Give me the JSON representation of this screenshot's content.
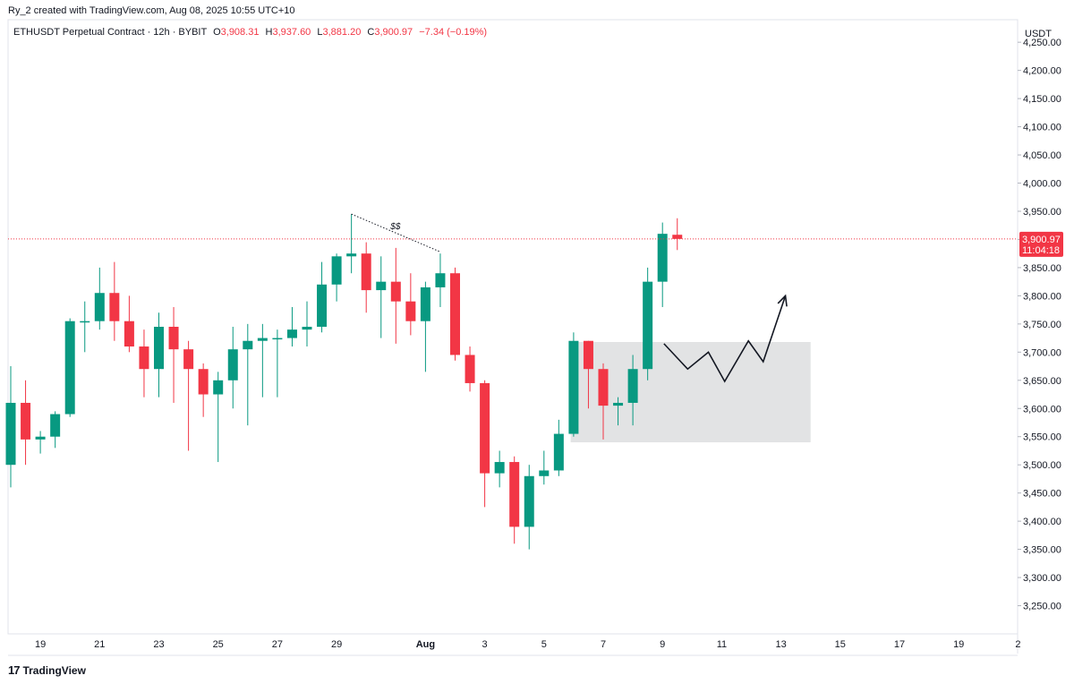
{
  "header": {
    "attribution": "Ry_2 created with TradingView.com, Aug 08, 2025 10:55 UTC+10"
  },
  "legend": {
    "symbol": "ETHUSDT Perpetual Contract · 12h · BYBIT",
    "open_label": "O",
    "open": "3,908.31",
    "high_label": "H",
    "high": "3,937.60",
    "low_label": "L",
    "low": "3,881.20",
    "close_label": "C",
    "close": "3,900.97",
    "change": "−7.34 (−0.19%)"
  },
  "footer": {
    "brand": "TradingView",
    "logo_text": "17"
  },
  "colors": {
    "up": "#089981",
    "down": "#f23645",
    "zone": "#e0e1e3",
    "text": "#131722"
  },
  "chart_data": {
    "type": "candlestick",
    "currency": "USDT",
    "ylim": [
      3200,
      4290
    ],
    "y_ticks": [
      3250,
      3300,
      3350,
      3400,
      3450,
      3500,
      3550,
      3600,
      3650,
      3700,
      3750,
      3800,
      3850,
      3900,
      3950,
      4000,
      4050,
      4100,
      4150,
      4200,
      4250
    ],
    "y_tick_labels": [
      "3,250.00",
      "3,300.00",
      "3,350.00",
      "3,400.00",
      "3,450.00",
      "3,500.00",
      "3,550.00",
      "3,600.00",
      "3,650.00",
      "3,700.00",
      "3,750.00",
      "3,800.00",
      "3,850.00",
      "3,900.00",
      "3,950.00",
      "4,000.00",
      "4,050.00",
      "4,100.00",
      "4,150.00",
      "4,200.00",
      "4,250.00"
    ],
    "x_tick_labels": [
      {
        "i": 2,
        "label": "19"
      },
      {
        "i": 6,
        "label": "21"
      },
      {
        "i": 10,
        "label": "23"
      },
      {
        "i": 14,
        "label": "25"
      },
      {
        "i": 18,
        "label": "27"
      },
      {
        "i": 22,
        "label": "29"
      },
      {
        "i": 28,
        "label": "Aug"
      },
      {
        "i": 32,
        "label": "3"
      },
      {
        "i": 36,
        "label": "5"
      },
      {
        "i": 40,
        "label": "7"
      },
      {
        "i": 44,
        "label": "9"
      },
      {
        "i": 48,
        "label": "11"
      },
      {
        "i": 52,
        "label": "13"
      },
      {
        "i": 56,
        "label": "15"
      },
      {
        "i": 60,
        "label": "17"
      },
      {
        "i": 64,
        "label": "19"
      },
      {
        "i": 68,
        "label": "2"
      }
    ],
    "candles": [
      [
        3500,
        3610,
        3460,
        3675
      ],
      [
        3610,
        3545,
        3500,
        3650
      ],
      [
        3545,
        3550,
        3520,
        3560
      ],
      [
        3550,
        3590,
        3530,
        3595
      ],
      [
        3590,
        3755,
        3585,
        3760
      ],
      [
        3755,
        3755,
        3700,
        3790
      ],
      [
        3755,
        3805,
        3740,
        3850
      ],
      [
        3805,
        3755,
        3720,
        3860
      ],
      [
        3755,
        3710,
        3700,
        3800
      ],
      [
        3710,
        3670,
        3620,
        3740
      ],
      [
        3670,
        3745,
        3620,
        3770
      ],
      [
        3745,
        3705,
        3610,
        3780
      ],
      [
        3705,
        3670,
        3525,
        3720
      ],
      [
        3670,
        3625,
        3585,
        3680
      ],
      [
        3625,
        3650,
        3505,
        3665
      ],
      [
        3650,
        3705,
        3600,
        3745
      ],
      [
        3705,
        3720,
        3570,
        3750
      ],
      [
        3720,
        3725,
        3620,
        3750
      ],
      [
        3725,
        3725,
        3620,
        3740
      ],
      [
        3725,
        3740,
        3710,
        3780
      ],
      [
        3740,
        3745,
        3710,
        3790
      ],
      [
        3745,
        3820,
        3735,
        3860
      ],
      [
        3820,
        3870,
        3790,
        3875
      ],
      [
        3870,
        3875,
        3840,
        3945
      ],
      [
        3875,
        3810,
        3770,
        3895
      ],
      [
        3810,
        3825,
        3725,
        3870
      ],
      [
        3825,
        3790,
        3715,
        3885
      ],
      [
        3790,
        3755,
        3730,
        3840
      ],
      [
        3755,
        3815,
        3665,
        3825
      ],
      [
        3815,
        3840,
        3780,
        3875
      ],
      [
        3840,
        3695,
        3685,
        3850
      ],
      [
        3695,
        3645,
        3630,
        3710
      ],
      [
        3645,
        3485,
        3425,
        3650
      ],
      [
        3485,
        3505,
        3460,
        3525
      ],
      [
        3505,
        3390,
        3360,
        3515
      ],
      [
        3390,
        3480,
        3350,
        3500
      ],
      [
        3480,
        3490,
        3465,
        3525
      ],
      [
        3490,
        3555,
        3480,
        3580
      ],
      [
        3555,
        3720,
        3550,
        3735
      ],
      [
        3720,
        3670,
        3600,
        3720
      ],
      [
        3670,
        3605,
        3545,
        3680
      ],
      [
        3605,
        3610,
        3570,
        3620
      ],
      [
        3610,
        3670,
        3570,
        3695
      ],
      [
        3670,
        3825,
        3650,
        3850
      ],
      [
        3825,
        3910,
        3780,
        3930
      ],
      [
        3908.31,
        3900.97,
        3881.2,
        3937.6
      ]
    ],
    "current_price": {
      "value": 3900.97,
      "label": "3,900.97",
      "countdown": "11:04:18"
    },
    "annotations": {
      "liquidity_label": "$$",
      "liquidity_line": [
        {
          "i": 23,
          "price": 3945
        },
        {
          "i": 29,
          "price": 3878
        }
      ],
      "zone": {
        "i_start": 37.8,
        "i_end": 54,
        "top": 3718,
        "bottom": 3540
      },
      "projection_path": [
        {
          "i": 44.1,
          "price": 3715
        },
        {
          "i": 45.7,
          "price": 3670
        },
        {
          "i": 47.1,
          "price": 3700
        },
        {
          "i": 48.2,
          "price": 3648
        },
        {
          "i": 49.8,
          "price": 3720
        },
        {
          "i": 50.8,
          "price": 3683
        },
        {
          "i": 52.3,
          "price": 3800
        }
      ]
    }
  }
}
